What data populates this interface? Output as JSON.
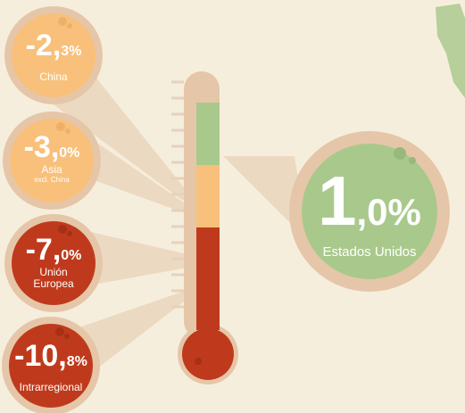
{
  "items": [
    {
      "whole": "-2,",
      "decimal": "3%",
      "label": "China"
    },
    {
      "whole": "-3,",
      "decimal": "0%",
      "label": "Asia",
      "sublabel": "excl. China"
    },
    {
      "whole": "-7,",
      "decimal": "0%",
      "label": "Unión",
      "label2": "Europea"
    },
    {
      "whole": "-10,",
      "decimal": "8%",
      "label": "Intrarregional"
    }
  ],
  "featured": {
    "whole": "1",
    "decimal": ",0%",
    "label": "Estados Unidos"
  }
}
